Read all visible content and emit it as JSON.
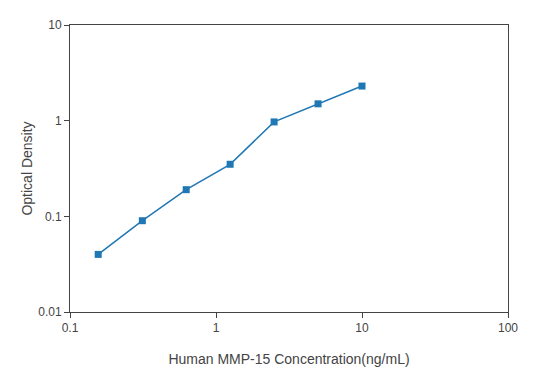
{
  "chart_data": {
    "type": "line",
    "x": [
      0.156,
      0.313,
      0.625,
      1.25,
      2.5,
      5.0,
      10.0
    ],
    "values": [
      0.04,
      0.09,
      0.19,
      0.35,
      0.97,
      1.5,
      2.3
    ],
    "xlabel": "Human MMP-15 Concentration(ng/mL)",
    "ylabel": "Optical Density",
    "xlim": [
      0.1,
      100
    ],
    "ylim": [
      0.01,
      10
    ],
    "xticks": [
      0.1,
      1,
      10,
      100
    ],
    "yticks": [
      0.01,
      0.1,
      1,
      10
    ],
    "log": true,
    "grid": false,
    "marker": "square"
  }
}
